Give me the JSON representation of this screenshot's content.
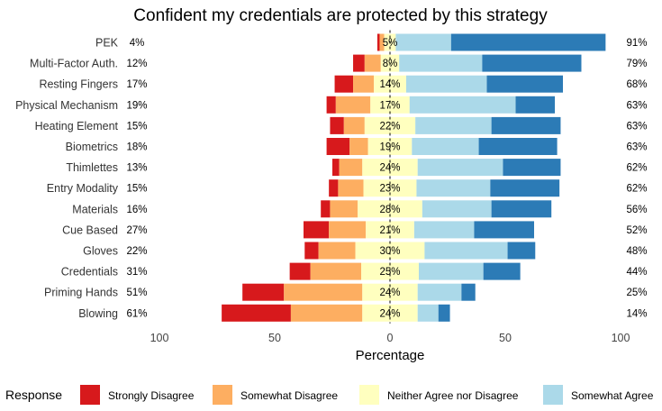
{
  "chart_data": {
    "type": "bar",
    "subtype": "diverging-stacked-horizontal",
    "title": "Confident my credentials are protected by this strategy",
    "xlabel": "Percentage",
    "ylabel": "",
    "xlim": [
      -100,
      100
    ],
    "x_ticks": [
      -100,
      -50,
      0,
      50,
      100
    ],
    "x_tick_labels": [
      "100",
      "50",
      "0",
      "50",
      "100"
    ],
    "grid": false,
    "legend": {
      "title": "Response",
      "placement": "bottom"
    },
    "series": [
      {
        "name": "Strongly Disagree",
        "color": "#D7191C"
      },
      {
        "name": "Somewhat Disagree",
        "color": "#FDAE61"
      },
      {
        "name": "Neither Agree nor Disagree",
        "color": "#FFFFBF"
      },
      {
        "name": "Somewhat Agree",
        "color": "#ABD9E9"
      },
      {
        "name": "Strongly Agree",
        "color": "#2C7BB6"
      }
    ],
    "categories": [
      {
        "name": "PEK",
        "values": [
          1,
          2,
          5,
          24,
          67
        ],
        "left_label": "4%",
        "mid_label": "5%",
        "right_label": "91%"
      },
      {
        "name": "Multi-Factor Auth.",
        "values": [
          5,
          7,
          8,
          36,
          43
        ],
        "left_label": "12%",
        "mid_label": "8%",
        "right_label": "79%"
      },
      {
        "name": "Resting Fingers",
        "values": [
          8,
          9,
          14,
          35,
          33
        ],
        "left_label": "17%",
        "mid_label": "14%",
        "right_label": "68%"
      },
      {
        "name": "Physical Mechanism",
        "values": [
          4,
          15,
          17,
          46,
          17
        ],
        "left_label": "19%",
        "mid_label": "17%",
        "right_label": "63%"
      },
      {
        "name": "Heating Element",
        "values": [
          6,
          9,
          22,
          33,
          30
        ],
        "left_label": "15%",
        "mid_label": "22%",
        "right_label": "63%"
      },
      {
        "name": "Biometrics",
        "values": [
          10,
          8,
          19,
          29,
          34
        ],
        "left_label": "18%",
        "mid_label": "19%",
        "right_label": "63%"
      },
      {
        "name": "Thimlettes",
        "values": [
          3,
          10,
          24,
          37,
          25
        ],
        "left_label": "13%",
        "mid_label": "24%",
        "right_label": "62%"
      },
      {
        "name": "Entry Modality",
        "values": [
          4,
          11,
          23,
          32,
          30
        ],
        "left_label": "15%",
        "mid_label": "23%",
        "right_label": "62%"
      },
      {
        "name": "Materials",
        "values": [
          4,
          12,
          28,
          30,
          26
        ],
        "left_label": "16%",
        "mid_label": "28%",
        "right_label": "56%"
      },
      {
        "name": "Cue Based",
        "values": [
          11,
          16,
          21,
          26,
          26
        ],
        "left_label": "27%",
        "mid_label": "21%",
        "right_label": "52%"
      },
      {
        "name": "Gloves",
        "values": [
          6,
          16,
          30,
          36,
          12
        ],
        "left_label": "22%",
        "mid_label": "30%",
        "right_label": "48%"
      },
      {
        "name": "Credentials",
        "values": [
          9,
          22,
          25,
          28,
          16
        ],
        "left_label": "31%",
        "mid_label": "25%",
        "right_label": "44%"
      },
      {
        "name": "Priming Hands",
        "values": [
          18,
          34,
          24,
          19,
          6
        ],
        "left_label": "51%",
        "mid_label": "24%",
        "right_label": "25%"
      },
      {
        "name": "Blowing",
        "values": [
          30,
          31,
          24,
          9,
          5
        ],
        "left_label": "61%",
        "mid_label": "24%",
        "right_label": "14%"
      }
    ]
  }
}
